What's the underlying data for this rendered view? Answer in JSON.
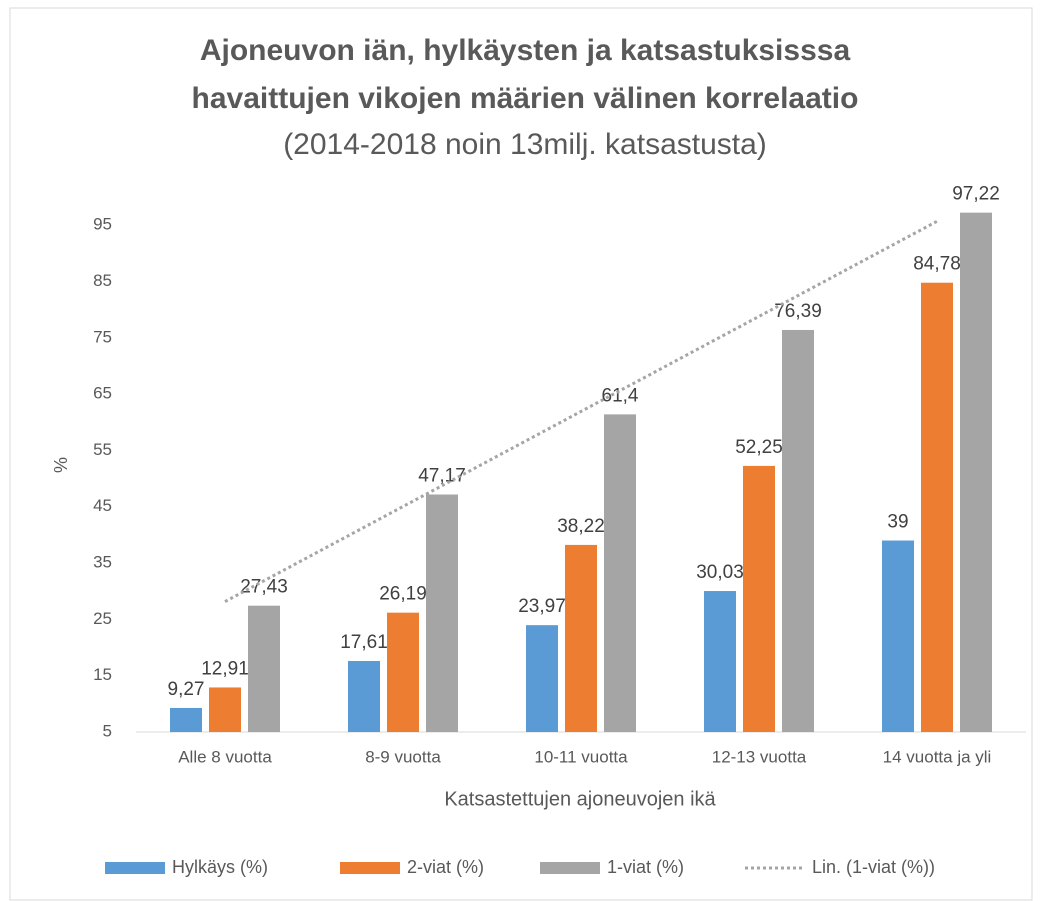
{
  "chart_data": {
    "type": "bar",
    "title_lines": [
      "Ajoneuvon iän, hylkäysten ja katsastuksisssa",
      "havaittujen vikojen määrien välinen korrelaatio"
    ],
    "subtitle": "(2014-2018 noin 13milj. katsastusta)",
    "x_label": "Katsastettujen ajoneuvojen ikä",
    "y_label": "%",
    "categories": [
      "Alle 8 vuotta",
      "8-9 vuotta",
      "10-11 vuotta",
      "12-13 vuotta",
      "14 vuotta ja yli"
    ],
    "series": [
      {
        "name": "Hylkäys (%)",
        "color": "#5b9bd5",
        "values": [
          9.27,
          17.61,
          23.97,
          30.03,
          39
        ],
        "value_labels": [
          "9,27",
          "17,61",
          "23,97",
          "30,03",
          "39"
        ]
      },
      {
        "name": "2-viat (%)",
        "color": "#ed7d31",
        "values": [
          12.91,
          26.19,
          38.22,
          52.25,
          84.78
        ],
        "value_labels": [
          "12,91",
          "26,19",
          "38,22",
          "52,25",
          "84,78"
        ]
      },
      {
        "name": "1-viat (%)",
        "color": "#a5a5a5",
        "values": [
          27.43,
          47.17,
          61.4,
          76.39,
          97.22
        ],
        "value_labels": [
          "27,43",
          "47,17",
          "61,4",
          "76,39",
          "97,22"
        ]
      }
    ],
    "trendline": {
      "name": "Lin. (1-viat (%))",
      "color": "#a5a5a5",
      "values": [
        28.16,
        45.04,
        61.92,
        78.8,
        95.68
      ]
    },
    "ylim": [
      5,
      100
    ],
    "yticks": [
      5,
      15,
      25,
      35,
      45,
      55,
      65,
      75,
      85,
      95
    ],
    "grid": false,
    "legend": "bottom"
  }
}
